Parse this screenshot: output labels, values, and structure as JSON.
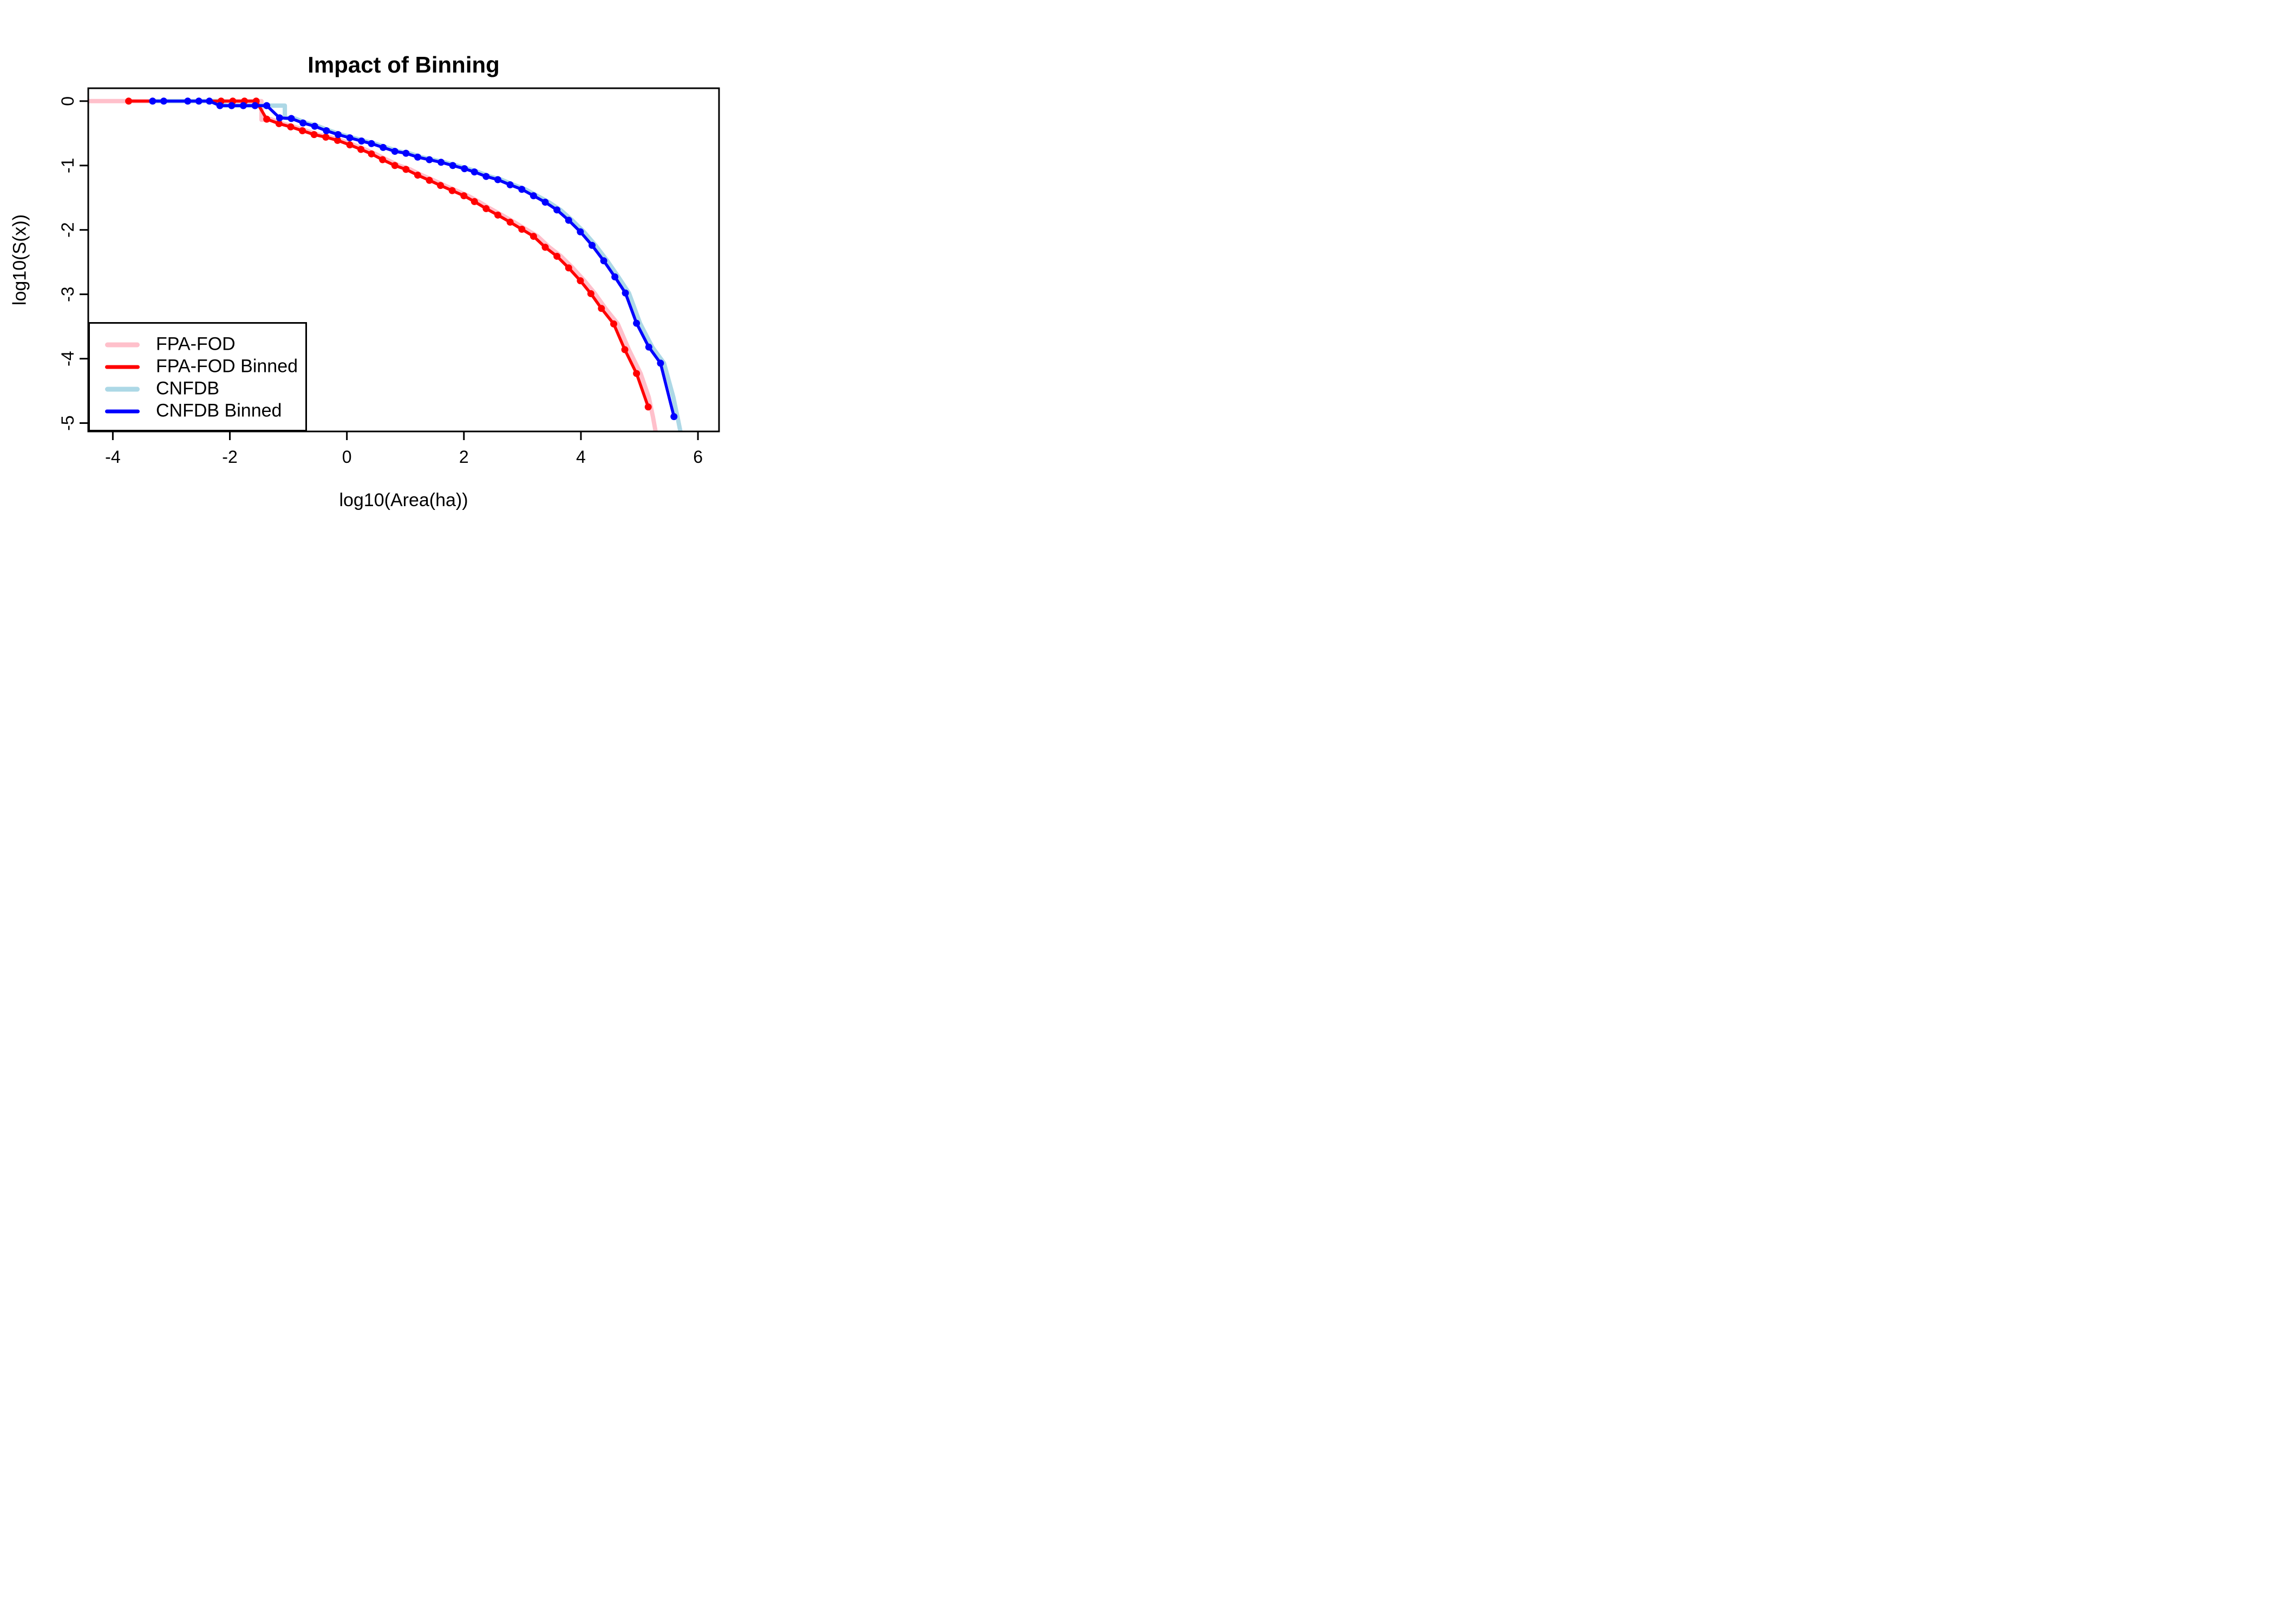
{
  "chart_data": {
    "type": "line",
    "title": "Impact of Binning",
    "xlabel": "log10(Area(ha))",
    "ylabel": "log10(S(x))",
    "xlim": [
      -4.42,
      6.36
    ],
    "ylim": [
      -5.13,
      0.2
    ],
    "xticks": [
      -4,
      -2,
      0,
      2,
      4,
      6
    ],
    "yticks": [
      0,
      -1,
      -2,
      -3,
      -4,
      -5
    ],
    "grid": false,
    "legend_position": "bottom-left",
    "background": "#FFFFFF",
    "axis_color": "#000000",
    "draw_order": [
      0,
      2,
      1,
      3
    ],
    "series": [
      {
        "name": "FPA-FOD",
        "color": "#FFC0CB",
        "line_width": 8,
        "markers": false,
        "marker_radius": 0,
        "x": [
          -4.42,
          -1.46,
          -1.46,
          -1.3,
          -1.09,
          -0.89,
          -0.69,
          -0.49,
          -0.29,
          -0.09,
          0.12,
          0.31,
          0.49,
          0.68,
          0.89,
          1.08,
          1.28,
          1.48,
          1.67,
          1.87,
          2.07,
          2.25,
          2.45,
          2.65,
          2.86,
          3.06,
          3.26,
          3.46,
          3.66,
          3.86,
          4.06,
          4.24,
          4.42,
          4.63,
          4.82,
          5.02,
          5.16,
          5.23,
          5.28
        ],
        "y": [
          0,
          0,
          -0.29,
          -0.28,
          -0.35,
          -0.4,
          -0.46,
          -0.52,
          -0.56,
          -0.61,
          -0.68,
          -0.75,
          -0.82,
          -0.91,
          -1.0,
          -1.06,
          -1.15,
          -1.23,
          -1.31,
          -1.39,
          -1.47,
          -1.56,
          -1.67,
          -1.77,
          -1.88,
          -1.99,
          -2.1,
          -2.27,
          -2.41,
          -2.59,
          -2.79,
          -2.99,
          -3.22,
          -3.46,
          -3.86,
          -4.23,
          -4.6,
          -4.9,
          -5.15
        ]
      },
      {
        "name": "FPA-FOD Binned",
        "color": "#FF0000",
        "line_width": 5.5,
        "markers": true,
        "marker_radius": 6.5,
        "x": [
          -3.73,
          -2.15,
          -1.95,
          -1.75,
          -1.55,
          -1.37,
          -1.16,
          -0.96,
          -0.76,
          -0.56,
          -0.36,
          -0.16,
          0.05,
          0.24,
          0.42,
          0.61,
          0.82,
          1.01,
          1.21,
          1.41,
          1.6,
          1.8,
          2.0,
          2.18,
          2.38,
          2.58,
          2.79,
          2.99,
          3.19,
          3.39,
          3.59,
          3.79,
          3.99,
          4.17,
          4.35,
          4.56,
          4.75,
          4.95,
          5.15
        ],
        "y": [
          0,
          0,
          0,
          0,
          0,
          -0.28,
          -0.35,
          -0.4,
          -0.46,
          -0.52,
          -0.56,
          -0.61,
          -0.68,
          -0.75,
          -0.82,
          -0.91,
          -1.0,
          -1.06,
          -1.15,
          -1.23,
          -1.31,
          -1.39,
          -1.47,
          -1.56,
          -1.67,
          -1.77,
          -1.88,
          -1.99,
          -2.1,
          -2.27,
          -2.41,
          -2.59,
          -2.79,
          -2.99,
          -3.22,
          -3.46,
          -3.86,
          -4.23,
          -4.75
        ]
      },
      {
        "name": "CNFDB",
        "color": "#ADD8E6",
        "line_width": 8,
        "markers": false,
        "marker_radius": 0,
        "x": [
          -3.37,
          -2.1,
          -2.1,
          -1.06,
          -1.06,
          -0.89,
          -0.69,
          -0.49,
          -0.29,
          -0.09,
          0.11,
          0.31,
          0.48,
          0.68,
          0.88,
          1.07,
          1.27,
          1.47,
          1.67,
          1.87,
          2.07,
          2.24,
          2.44,
          2.64,
          2.85,
          3.05,
          3.25,
          3.45,
          3.65,
          3.85,
          4.05,
          4.25,
          4.45,
          4.64,
          4.82,
          5.01,
          5.22,
          5.42,
          5.58,
          5.66,
          5.7
        ],
        "y": [
          0,
          0,
          -0.07,
          -0.07,
          -0.26,
          -0.27,
          -0.34,
          -0.39,
          -0.46,
          -0.52,
          -0.57,
          -0.62,
          -0.66,
          -0.72,
          -0.78,
          -0.81,
          -0.87,
          -0.91,
          -0.95,
          -1.0,
          -1.05,
          -1.1,
          -1.17,
          -1.22,
          -1.3,
          -1.37,
          -1.47,
          -1.57,
          -1.69,
          -1.85,
          -2.03,
          -2.24,
          -2.48,
          -2.73,
          -2.98,
          -3.45,
          -3.82,
          -4.07,
          -4.6,
          -4.95,
          -5.13
        ]
      },
      {
        "name": "CNFDB Binned",
        "color": "#0000FF",
        "line_width": 5.5,
        "markers": true,
        "marker_radius": 6.5,
        "x": [
          -3.32,
          -3.13,
          -2.72,
          -2.53,
          -2.35,
          -2.17,
          -1.97,
          -1.77,
          -1.57,
          -1.37,
          -1.15,
          -0.95,
          -0.75,
          -0.55,
          -0.35,
          -0.15,
          0.05,
          0.25,
          0.42,
          0.62,
          0.82,
          1.01,
          1.21,
          1.41,
          1.61,
          1.81,
          2.01,
          2.18,
          2.38,
          2.58,
          2.79,
          2.99,
          3.19,
          3.39,
          3.59,
          3.79,
          3.99,
          4.19,
          4.39,
          4.58,
          4.76,
          4.95,
          5.16,
          5.36,
          5.59
        ],
        "y": [
          0,
          0,
          0,
          0,
          0,
          -0.07,
          -0.07,
          -0.07,
          -0.07,
          -0.07,
          -0.26,
          -0.27,
          -0.34,
          -0.39,
          -0.46,
          -0.52,
          -0.57,
          -0.62,
          -0.66,
          -0.72,
          -0.78,
          -0.81,
          -0.87,
          -0.91,
          -0.95,
          -1.0,
          -1.05,
          -1.1,
          -1.17,
          -1.22,
          -1.3,
          -1.37,
          -1.47,
          -1.57,
          -1.69,
          -1.85,
          -2.03,
          -2.24,
          -2.48,
          -2.73,
          -2.98,
          -3.45,
          -3.82,
          -4.07,
          -4.9
        ]
      }
    ]
  }
}
